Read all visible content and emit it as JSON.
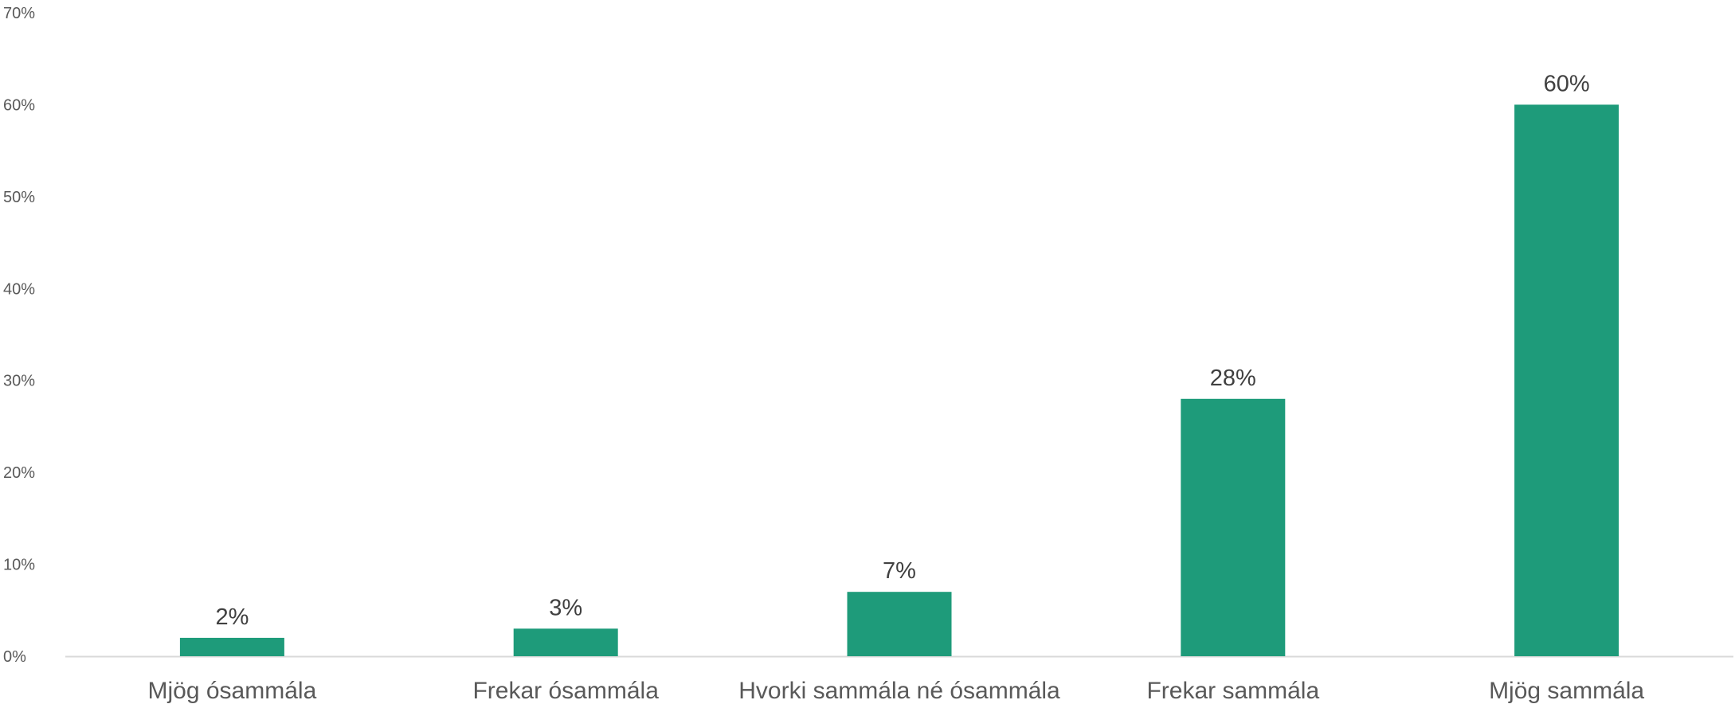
{
  "chart_data": {
    "type": "bar",
    "title": "",
    "xlabel": "",
    "ylabel": "",
    "categories": [
      "Mjög ósammála",
      "Frekar ósammála",
      "Hvorki sammála né ósammála",
      "Frekar sammála",
      "Mjög sammála"
    ],
    "values": [
      2,
      3,
      7,
      28,
      60
    ],
    "data_labels": [
      "2%",
      "3%",
      "7%",
      "28%",
      "60%"
    ],
    "ylim": [
      0,
      70
    ],
    "yticks": [
      0,
      10,
      20,
      30,
      40,
      50,
      60,
      70
    ],
    "ytick_labels": [
      "0%",
      "10%",
      "20%",
      "30%",
      "40%",
      "50%",
      "60%",
      "70%"
    ],
    "grid": false,
    "legend": "none",
    "bar_color": "#1e9b7a",
    "axis_color": "#d9d9d9"
  }
}
